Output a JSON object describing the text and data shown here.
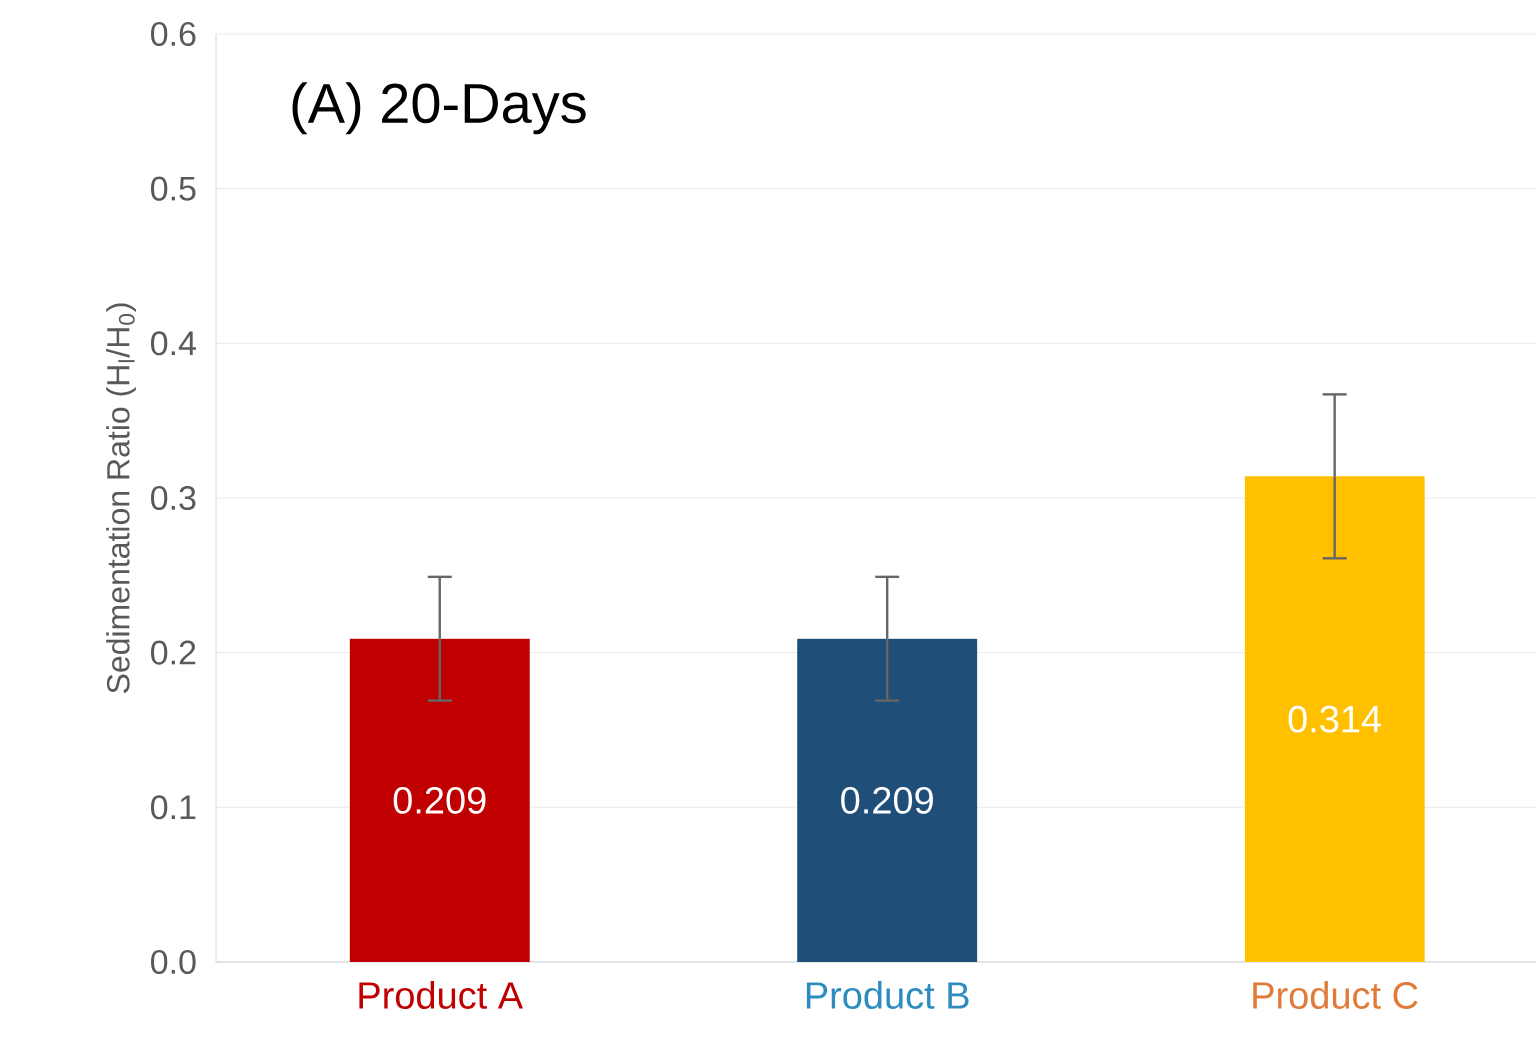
{
  "chart_data": {
    "type": "bar",
    "title": "(A)  20-Days",
    "ylabel": "Sedimentation Ratio (H$_{l}$/H$_{0}$)",
    "categories": [
      "Product A",
      "Product B",
      "Product C"
    ],
    "values": [
      0.209,
      0.209,
      0.314
    ],
    "colors": [
      "#c00000",
      "#1f4e79",
      "#ffc000"
    ],
    "errors": [
      0.04,
      0.04,
      0.053
    ],
    "data_labels": true,
    "ylim": [
      0,
      0.6
    ],
    "yticks": [
      {
        "value": 0,
        "label": "0.0"
      },
      0.1,
      0.2,
      0.3,
      0.4,
      0.5,
      0.6
    ],
    "grid": "y"
  }
}
